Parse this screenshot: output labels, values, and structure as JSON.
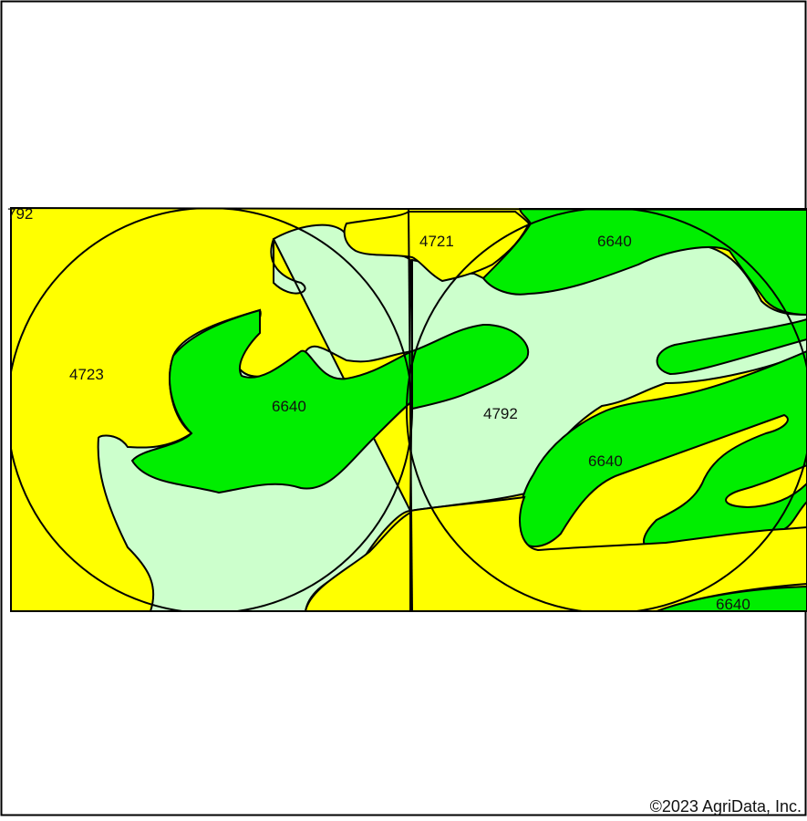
{
  "map": {
    "soil_labels": {
      "left_edge": "792",
      "left_circle": "4723",
      "left_center": "6640",
      "top_middle": "4721",
      "top_right": "6640",
      "right_center": "4792",
      "lower_right": "6640",
      "bottom_right": "6640"
    },
    "colors": {
      "yellow_unit": "#ffff00",
      "bright_green_unit": "#00ee00",
      "pale_green_unit": "#ccffcc",
      "boundary": "#000000",
      "background": "#ffffff"
    }
  },
  "footer": {
    "copyright": "©2023 AgriData, Inc."
  }
}
